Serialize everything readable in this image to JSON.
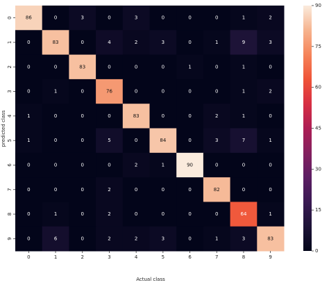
{
  "chart_data": {
    "type": "heatmap",
    "xlabel": "Actual class",
    "ylabel": "predicted class",
    "x_categories": [
      "0",
      "1",
      "2",
      "3",
      "4",
      "5",
      "6",
      "7",
      "8",
      "9"
    ],
    "y_categories": [
      "0",
      "1",
      "2",
      "3",
      "4",
      "5",
      "6",
      "7",
      "8",
      "9"
    ],
    "values": [
      [
        86,
        0,
        3,
        0,
        3,
        0,
        0,
        0,
        1,
        2
      ],
      [
        0,
        83,
        0,
        4,
        2,
        3,
        0,
        1,
        9,
        3
      ],
      [
        0,
        0,
        83,
        0,
        0,
        0,
        1,
        0,
        1,
        0
      ],
      [
        0,
        1,
        0,
        76,
        0,
        0,
        0,
        0,
        1,
        2
      ],
      [
        1,
        0,
        0,
        0,
        83,
        0,
        0,
        2,
        1,
        0
      ],
      [
        1,
        0,
        0,
        5,
        0,
        84,
        0,
        3,
        7,
        1
      ],
      [
        0,
        0,
        0,
        0,
        2,
        1,
        90,
        0,
        0,
        0
      ],
      [
        0,
        0,
        0,
        2,
        0,
        0,
        0,
        82,
        0,
        0
      ],
      [
        0,
        1,
        0,
        2,
        0,
        0,
        0,
        0,
        64,
        1
      ],
      [
        0,
        6,
        0,
        2,
        2,
        3,
        0,
        1,
        3,
        83
      ]
    ],
    "colorbar": {
      "min": 0,
      "max": 90,
      "ticks": [
        0,
        15,
        30,
        45,
        60,
        75,
        90
      ],
      "colormap": "rocket"
    }
  }
}
